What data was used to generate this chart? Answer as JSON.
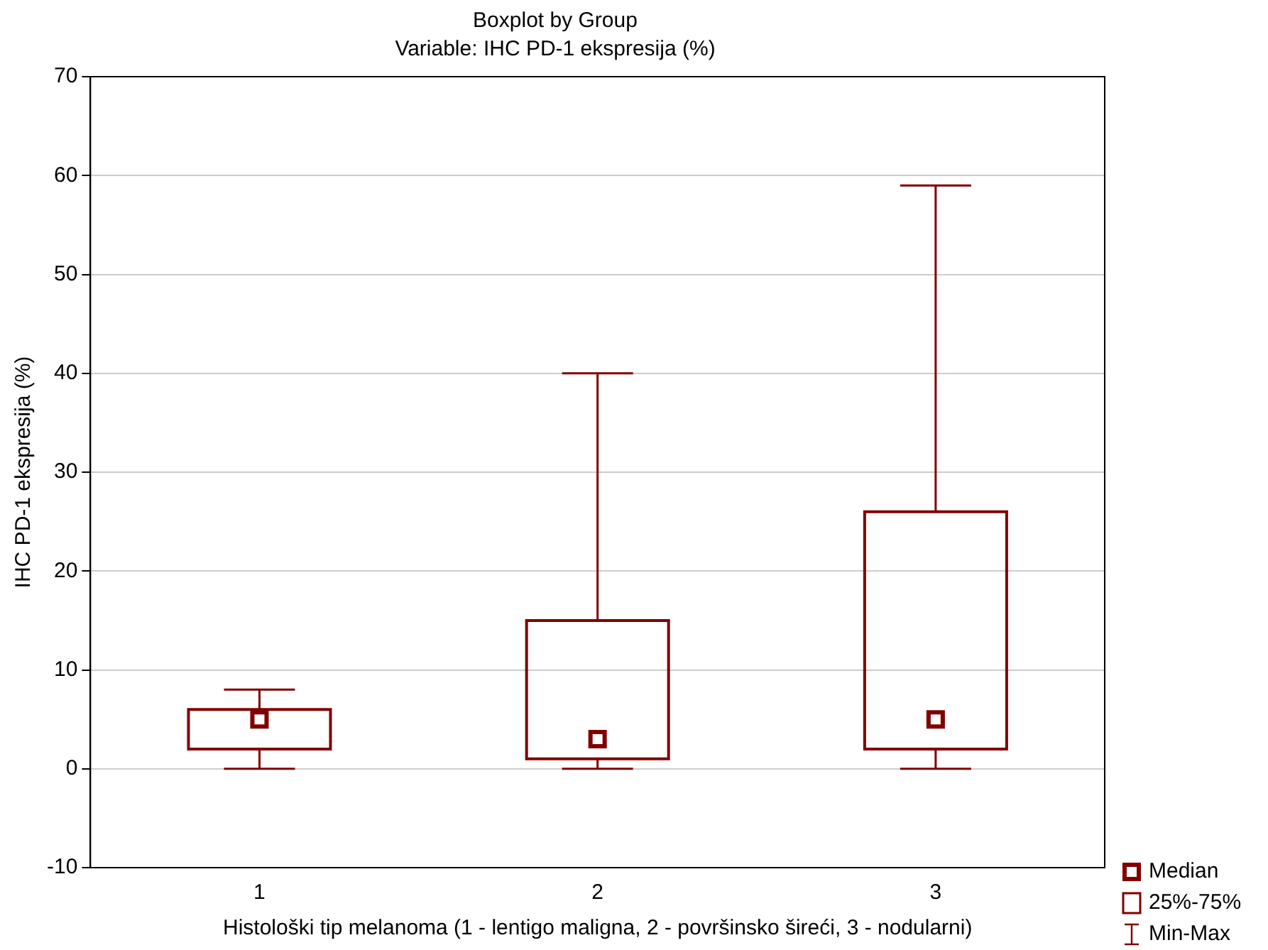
{
  "chart_data": {
    "type": "box",
    "title": "Boxplot by Group",
    "subtitle": "Variable: IHC PD-1 ekspresija (%)",
    "xlabel": "Histološki tip melanoma (1 - lentigo maligna, 2 - površinsko šireći, 3 - nodularni)",
    "ylabel": "IHC PD-1 ekspresija (%)",
    "categories": [
      "1",
      "2",
      "3"
    ],
    "color": "#800000",
    "boxes": [
      {
        "low": 0,
        "q1": 2,
        "median": 5,
        "q3": 6,
        "high": 8
      },
      {
        "low": 0,
        "q1": 1,
        "median": 3,
        "q3": 15,
        "high": 40
      },
      {
        "low": 0,
        "q1": 2,
        "median": 5,
        "q3": 26,
        "high": 59
      }
    ],
    "ylim": [
      -10,
      70
    ],
    "yticks": [
      -10,
      0,
      10,
      20,
      30,
      40,
      50,
      60,
      70
    ],
    "grid": "y",
    "marker": "square",
    "annotations": [
      "Median",
      "25%-75%",
      "Min-Max"
    ]
  }
}
